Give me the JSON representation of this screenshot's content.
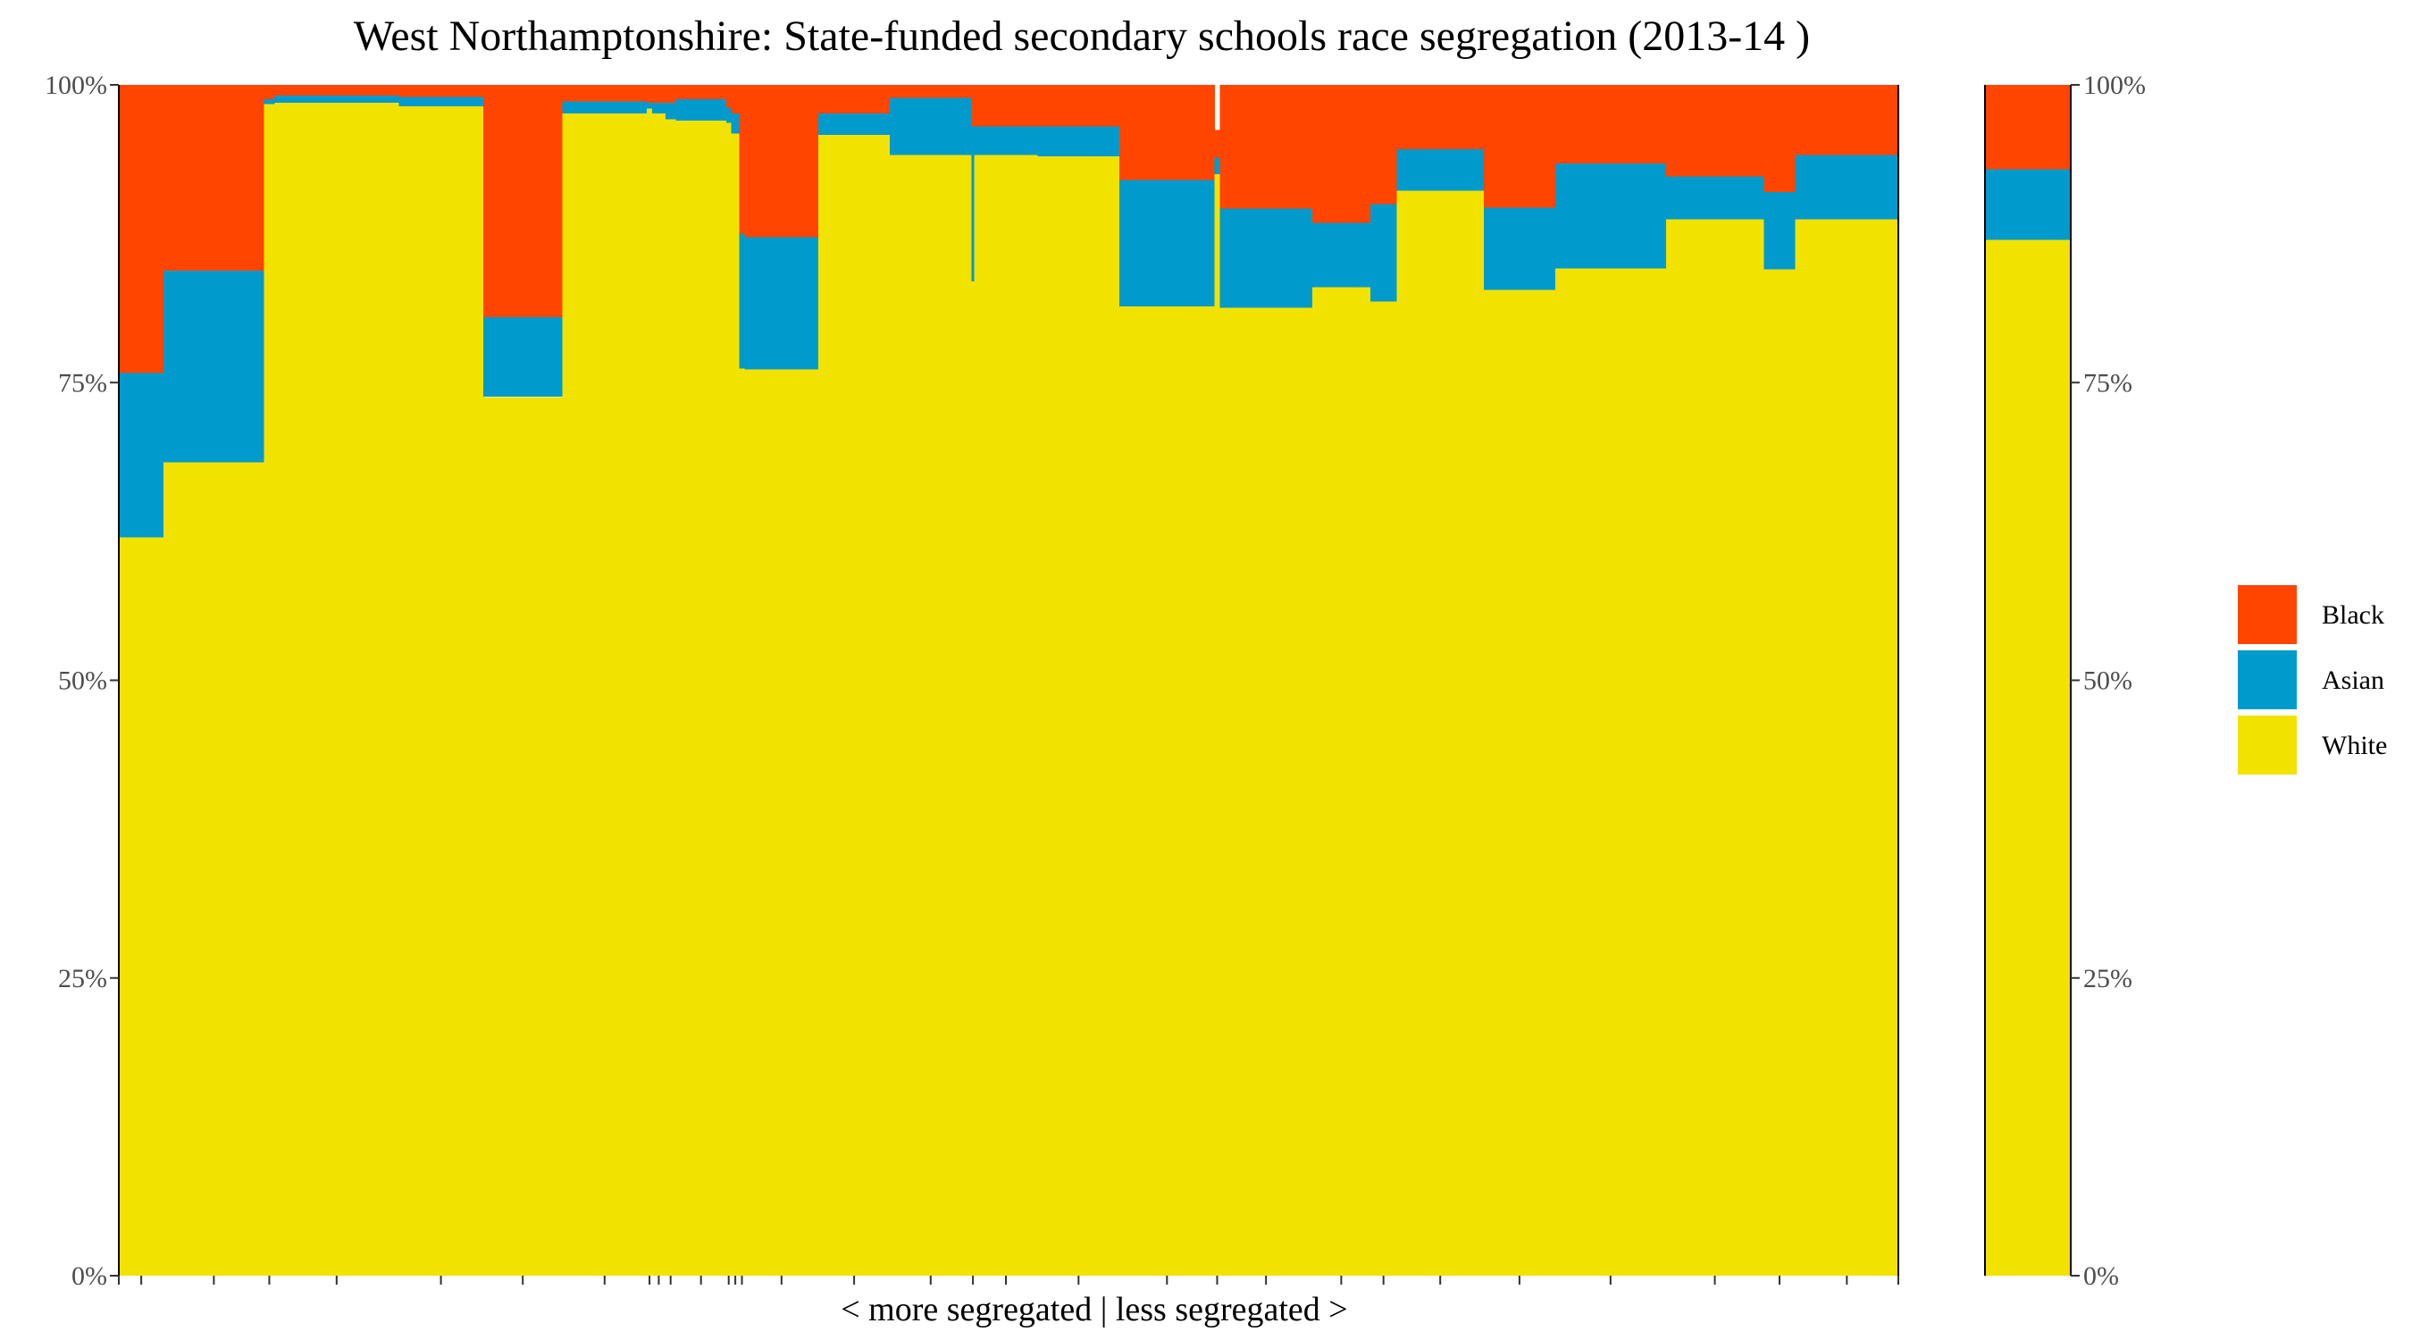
{
  "chart_data": {
    "type": "stacked-bar",
    "title": "West Northamptonshire: State-funded secondary schools race segregation (2013-14 )",
    "xlabel": "< more segregated | less segregated >",
    "ylabel": "",
    "ylim": [
      0,
      100
    ],
    "y_ticks": [
      "0%",
      "25%",
      "50%",
      "75%",
      "100%"
    ],
    "y_tick_values": [
      0,
      25,
      50,
      75,
      100
    ],
    "stack_order": [
      "White",
      "Asian",
      "Black"
    ],
    "legend": {
      "position": "right",
      "entries": [
        {
          "label": "Black",
          "color": "#FF4500"
        },
        {
          "label": "Asian",
          "color": "#009ACD"
        },
        {
          "label": "White",
          "color": "#F2E200"
        }
      ]
    },
    "colors": {
      "White": "#F2E200",
      "Asian": "#009ACD",
      "Black": "#FF4500",
      "axis": "#000000",
      "tick_text": "#4d4d4d"
    },
    "schools": [
      {
        "share": 1.7,
        "White": 62.0,
        "Asian": 13.8,
        "Black": 24.2
      },
      {
        "share": 3.8,
        "White": 68.3,
        "Asian": 16.1,
        "Black": 15.6
      },
      {
        "share": 0.4,
        "White": 98.4,
        "Asian": 0.4,
        "Black": 1.2
      },
      {
        "share": 4.7,
        "White": 98.5,
        "Asian": 0.6,
        "Black": 0.9
      },
      {
        "share": 3.2,
        "White": 98.2,
        "Asian": 0.8,
        "Black": 1.0
      },
      {
        "share": 3.0,
        "White": 73.8,
        "Asian": 6.7,
        "Black": 19.5
      },
      {
        "share": 3.2,
        "White": 97.6,
        "Asian": 1.0,
        "Black": 1.4
      },
      {
        "share": 0.2,
        "White": 98.0,
        "Asian": 0.5,
        "Black": 1.5
      },
      {
        "share": 0.5,
        "White": 97.6,
        "Asian": 0.9,
        "Black": 1.5
      },
      {
        "share": 0.4,
        "White": 97.1,
        "Asian": 1.4,
        "Black": 1.5
      },
      {
        "share": 1.9,
        "White": 97.0,
        "Asian": 1.8,
        "Black": 1.2
      },
      {
        "share": 0.2,
        "White": 96.8,
        "Asian": 1.3,
        "Black": 1.9
      },
      {
        "share": 0.3,
        "White": 95.9,
        "Asian": 1.7,
        "Black": 2.4
      },
      {
        "share": 0.2,
        "White": 76.2,
        "Asian": 11.3,
        "Black": 12.5
      },
      {
        "share": 2.8,
        "White": 76.1,
        "Asian": 11.1,
        "Black": 12.8
      },
      {
        "share": 2.7,
        "White": 95.8,
        "Asian": 1.8,
        "Black": 2.4
      },
      {
        "share": 3.1,
        "White": 94.1,
        "Asian": 4.8,
        "Black": 1.1
      },
      {
        "share": 0.1,
        "White": 83.5,
        "Asian": 13.0,
        "Black": 3.5
      },
      {
        "share": 2.4,
        "White": 94.1,
        "Asian": 2.4,
        "Black": 3.5
      },
      {
        "share": 3.1,
        "White": 94.0,
        "Asian": 2.5,
        "Black": 3.5
      },
      {
        "share": 3.6,
        "White": 81.4,
        "Asian": 10.6,
        "Black": 8.0
      },
      {
        "share": 0.2,
        "White": 92.5,
        "Asian": 1.4,
        "Black": 2.3
      },
      {
        "share": 3.5,
        "White": 81.3,
        "Asian": 8.3,
        "Black": 10.4
      },
      {
        "share": 2.2,
        "White": 83.0,
        "Asian": 5.4,
        "Black": 11.6
      },
      {
        "share": 1.0,
        "White": 81.8,
        "Asian": 8.2,
        "Black": 10.0
      },
      {
        "share": 3.3,
        "White": 91.1,
        "Asian": 3.5,
        "Black": 5.4
      },
      {
        "share": 2.7,
        "White": 82.8,
        "Asian": 6.9,
        "Black": 10.3
      },
      {
        "share": 4.2,
        "White": 84.6,
        "Asian": 8.8,
        "Black": 6.6
      },
      {
        "share": 3.7,
        "White": 88.7,
        "Asian": 3.6,
        "Black": 7.7
      },
      {
        "share": 1.2,
        "White": 84.5,
        "Asian": 6.5,
        "Black": 9.0
      },
      {
        "share": 3.9,
        "White": 88.7,
        "Asian": 5.4,
        "Black": 5.9
      }
    ],
    "overall": {
      "White": 87.0,
      "Asian": 5.9,
      "Black": 7.1
    }
  }
}
